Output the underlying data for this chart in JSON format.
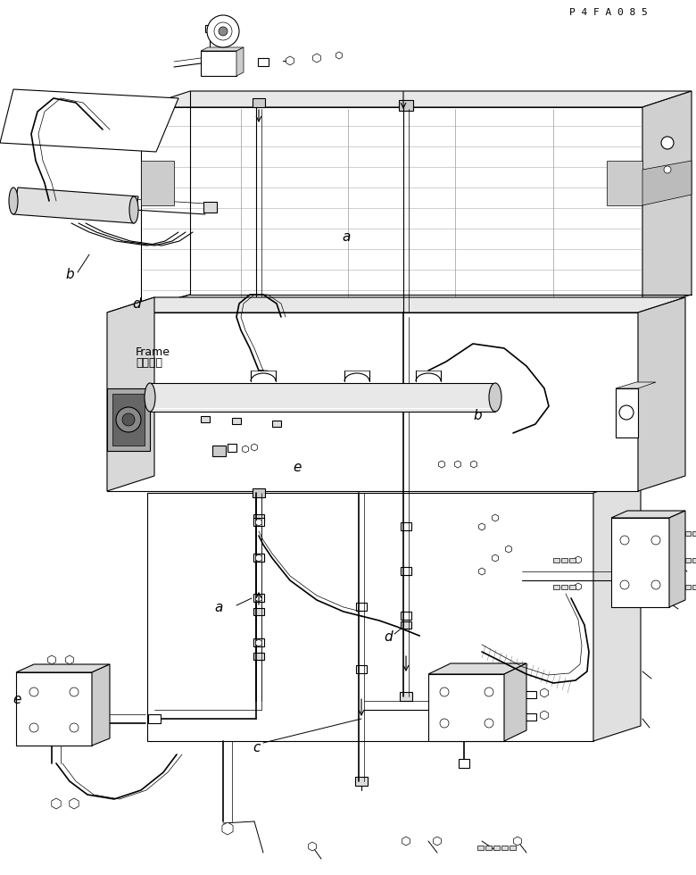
{
  "background_color": "#ffffff",
  "line_color": "#000000",
  "part_code": "P 4 F A 0 8 5",
  "label_frame_ja": "フレーム",
  "label_frame_en": "Frame",
  "fig_width": 7.8,
  "fig_height": 9.8,
  "dpi": 100,
  "iso_sx": 0.55,
  "iso_sy": 0.28
}
